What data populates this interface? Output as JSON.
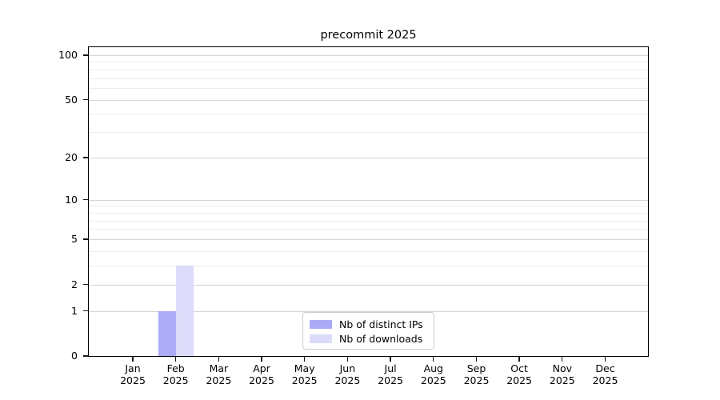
{
  "chart_data": {
    "type": "bar",
    "title": "precommit 2025",
    "categories": [
      {
        "month": "Jan",
        "year": "2025"
      },
      {
        "month": "Feb",
        "year": "2025"
      },
      {
        "month": "Mar",
        "year": "2025"
      },
      {
        "month": "Apr",
        "year": "2025"
      },
      {
        "month": "May",
        "year": "2025"
      },
      {
        "month": "Jun",
        "year": "2025"
      },
      {
        "month": "Jul",
        "year": "2025"
      },
      {
        "month": "Aug",
        "year": "2025"
      },
      {
        "month": "Sep",
        "year": "2025"
      },
      {
        "month": "Oct",
        "year": "2025"
      },
      {
        "month": "Nov",
        "year": "2025"
      },
      {
        "month": "Dec",
        "year": "2025"
      }
    ],
    "series": [
      {
        "name": "Nb of distinct IPs",
        "color": "#ababf8",
        "values": [
          0,
          1,
          0,
          0,
          0,
          0,
          0,
          0,
          0,
          0,
          0,
          0
        ]
      },
      {
        "name": "Nb of downloads",
        "color": "#dcdcfa",
        "values": [
          0,
          3,
          0,
          0,
          0,
          0,
          0,
          0,
          0,
          0,
          0,
          0
        ]
      }
    ],
    "yscale": "log1p",
    "yticks": [
      0,
      1,
      2,
      5,
      10,
      20,
      50,
      100
    ],
    "minor_yticks": [
      3,
      4,
      6,
      7,
      8,
      9,
      30,
      40,
      60,
      70,
      80,
      90
    ],
    "ylim": [
      0,
      113
    ],
    "xlabel": "",
    "ylabel": "",
    "grid": "horizontal",
    "legend_position": "lower center"
  },
  "colors": {
    "major_grid": "#d4d4d4",
    "minor_grid": "#ededed",
    "spine": "#000000",
    "legend_border": "#cccccc"
  }
}
